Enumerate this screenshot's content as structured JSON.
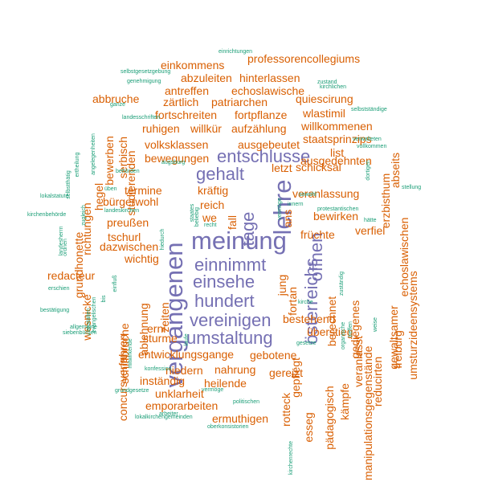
{
  "chart_data": {
    "type": "wordcloud",
    "title": "",
    "colors": {
      "big": "#7570b3",
      "medium": "#d95f02",
      "small": "#1b9e77"
    },
    "words": [
      {
        "text": "vergangenen",
        "weight": 5,
        "group": "big",
        "rotate": 90
      },
      {
        "text": "meinung",
        "weight": 5,
        "group": "big",
        "rotate": 0
      },
      {
        "text": "lehre",
        "weight": 5,
        "group": "big",
        "rotate": 90
      },
      {
        "text": "entschlusse",
        "weight": 4,
        "group": "big",
        "rotate": 0
      },
      {
        "text": "gehalt",
        "weight": 4,
        "group": "big",
        "rotate": 0
      },
      {
        "text": "tage",
        "weight": 4,
        "group": "big",
        "rotate": 90
      },
      {
        "text": "einnimmt",
        "weight": 4,
        "group": "big",
        "rotate": 0
      },
      {
        "text": "einsehe",
        "weight": 4,
        "group": "big",
        "rotate": 0
      },
      {
        "text": "hundert",
        "weight": 4,
        "group": "big",
        "rotate": 0
      },
      {
        "text": "vereinigen",
        "weight": 4,
        "group": "big",
        "rotate": 0
      },
      {
        "text": "umstaltung",
        "weight": 4,
        "group": "big",
        "rotate": 0
      },
      {
        "text": "österreichs",
        "weight": 4,
        "group": "big",
        "rotate": 90
      },
      {
        "text": "öffnen",
        "weight": 4,
        "group": "big",
        "rotate": 90
      },
      {
        "text": "professorencollegiums",
        "weight": 3,
        "group": "medium",
        "rotate": 0
      },
      {
        "text": "einkommens",
        "weight": 3,
        "group": "medium",
        "rotate": 0
      },
      {
        "text": "abzuleiten",
        "weight": 3,
        "group": "medium",
        "rotate": 0
      },
      {
        "text": "hinterlassen",
        "weight": 3,
        "group": "medium",
        "rotate": 0
      },
      {
        "text": "antreffen",
        "weight": 3,
        "group": "medium",
        "rotate": 0
      },
      {
        "text": "echoslawische",
        "weight": 3,
        "group": "medium",
        "rotate": 0
      },
      {
        "text": "abbruche",
        "weight": 3,
        "group": "medium",
        "rotate": 0
      },
      {
        "text": "zärtlich",
        "weight": 3,
        "group": "medium",
        "rotate": 0
      },
      {
        "text": "patriarchen",
        "weight": 3,
        "group": "medium",
        "rotate": 0
      },
      {
        "text": "quiescirung",
        "weight": 3,
        "group": "medium",
        "rotate": 0
      },
      {
        "text": "fortschreiten",
        "weight": 3,
        "group": "medium",
        "rotate": 0
      },
      {
        "text": "fortpflanze",
        "weight": 3,
        "group": "medium",
        "rotate": 0
      },
      {
        "text": "wlastimil",
        "weight": 3,
        "group": "medium",
        "rotate": 0
      },
      {
        "text": "ruhigen",
        "weight": 3,
        "group": "medium",
        "rotate": 0
      },
      {
        "text": "willkür",
        "weight": 3,
        "group": "medium",
        "rotate": 0
      },
      {
        "text": "aufzählung",
        "weight": 3,
        "group": "medium",
        "rotate": 0
      },
      {
        "text": "willkommenen",
        "weight": 3,
        "group": "medium",
        "rotate": 0
      },
      {
        "text": "staatsprinzips",
        "weight": 3,
        "group": "medium",
        "rotate": 0
      },
      {
        "text": "volksklassen",
        "weight": 3,
        "group": "medium",
        "rotate": 0
      },
      {
        "text": "ausgebeutet",
        "weight": 3,
        "group": "medium",
        "rotate": 0
      },
      {
        "text": "bewegungen",
        "weight": 3,
        "group": "medium",
        "rotate": 0
      },
      {
        "text": "list",
        "weight": 3,
        "group": "medium",
        "rotate": 0
      },
      {
        "text": "ausgedehnten",
        "weight": 3,
        "group": "medium",
        "rotate": 0
      },
      {
        "text": "letzt",
        "weight": 3,
        "group": "medium",
        "rotate": 0
      },
      {
        "text": "schicksal",
        "weight": 3,
        "group": "medium",
        "rotate": 0
      },
      {
        "text": "kräftig",
        "weight": 3,
        "group": "medium",
        "rotate": 0
      },
      {
        "text": "termine",
        "weight": 3,
        "group": "medium",
        "rotate": 0
      },
      {
        "text": "bürgerwohl",
        "weight": 3,
        "group": "medium",
        "rotate": 0
      },
      {
        "text": "reich",
        "weight": 3,
        "group": "medium",
        "rotate": 0
      },
      {
        "text": "veranlassung",
        "weight": 3,
        "group": "medium",
        "rotate": 0
      },
      {
        "text": "we",
        "weight": 3,
        "group": "medium",
        "rotate": 0
      },
      {
        "text": "preußen",
        "weight": 3,
        "group": "medium",
        "rotate": 0
      },
      {
        "text": "bewirken",
        "weight": 3,
        "group": "medium",
        "rotate": 0
      },
      {
        "text": "tschurl",
        "weight": 3,
        "group": "medium",
        "rotate": 0
      },
      {
        "text": "früchte",
        "weight": 3,
        "group": "medium",
        "rotate": 0
      },
      {
        "text": "verfiel",
        "weight": 3,
        "group": "medium",
        "rotate": 0
      },
      {
        "text": "dazwischen",
        "weight": 3,
        "group": "medium",
        "rotate": 0
      },
      {
        "text": "wichtig",
        "weight": 3,
        "group": "medium",
        "rotate": 0
      },
      {
        "text": "redacteur",
        "weight": 3,
        "group": "medium",
        "rotate": 0
      },
      {
        "text": "bestehend",
        "weight": 3,
        "group": "medium",
        "rotate": 0
      },
      {
        "text": "erni",
        "weight": 3,
        "group": "medium",
        "rotate": 0
      },
      {
        "text": "überstieg",
        "weight": 3,
        "group": "medium",
        "rotate": 0
      },
      {
        "text": "sturme",
        "weight": 3,
        "group": "medium",
        "rotate": 0
      },
      {
        "text": "entwicklungsgange",
        "weight": 3,
        "group": "medium",
        "rotate": 0
      },
      {
        "text": "gebotene",
        "weight": 3,
        "group": "medium",
        "rotate": 0
      },
      {
        "text": "niedern",
        "weight": 3,
        "group": "medium",
        "rotate": 0
      },
      {
        "text": "nahrung",
        "weight": 3,
        "group": "medium",
        "rotate": 0
      },
      {
        "text": "gereizt",
        "weight": 3,
        "group": "medium",
        "rotate": 0
      },
      {
        "text": "inständig",
        "weight": 3,
        "group": "medium",
        "rotate": 0
      },
      {
        "text": "heilende",
        "weight": 3,
        "group": "medium",
        "rotate": 0
      },
      {
        "text": "unklarheit",
        "weight": 3,
        "group": "medium",
        "rotate": 0
      },
      {
        "text": "emporarbeiten",
        "weight": 3,
        "group": "medium",
        "rotate": 0
      },
      {
        "text": "ermuthigen",
        "weight": 3,
        "group": "medium",
        "rotate": 0
      },
      {
        "text": "studierenden",
        "weight": 3,
        "group": "medium",
        "rotate": 90
      },
      {
        "text": "serbisch",
        "weight": 3,
        "group": "medium",
        "rotate": 90
      },
      {
        "text": "bewerben",
        "weight": 3,
        "group": "medium",
        "rotate": 90
      },
      {
        "text": "hegel",
        "weight": 3,
        "group": "medium",
        "rotate": 90
      },
      {
        "text": "richtungen",
        "weight": 3,
        "group": "medium",
        "rotate": 90
      },
      {
        "text": "grundhonette",
        "weight": 3,
        "group": "medium",
        "rotate": 90
      },
      {
        "text": "wesnické",
        "weight": 3,
        "group": "medium",
        "rotate": 90
      },
      {
        "text": "concursverfahren",
        "weight": 3,
        "group": "medium",
        "rotate": 90
      },
      {
        "text": "schiffbruche",
        "weight": 3,
        "group": "medium",
        "rotate": 90
      },
      {
        "text": "ablehnung",
        "weight": 3,
        "group": "medium",
        "rotate": 90
      },
      {
        "text": "zeiten",
        "weight": 3,
        "group": "medium",
        "rotate": 90
      },
      {
        "text": "fall",
        "weight": 3,
        "group": "medium",
        "rotate": 90
      },
      {
        "text": "ans",
        "weight": 3,
        "group": "medium",
        "rotate": 90
      },
      {
        "text": "fortan",
        "weight": 3,
        "group": "medium",
        "rotate": 90
      },
      {
        "text": "jung",
        "weight": 3,
        "group": "medium",
        "rotate": 90
      },
      {
        "text": "berechnet",
        "weight": 3,
        "group": "medium",
        "rotate": 90
      },
      {
        "text": "gediegenes",
        "weight": 3,
        "group": "medium",
        "rotate": 90
      },
      {
        "text": "erzbisthum",
        "weight": 3,
        "group": "medium",
        "rotate": 90
      },
      {
        "text": "abseits",
        "weight": 3,
        "group": "medium",
        "rotate": 90
      },
      {
        "text": "echoslawischen",
        "weight": 3,
        "group": "medium",
        "rotate": 90
      },
      {
        "text": "umsturzideensystems",
        "weight": 3,
        "group": "medium",
        "rotate": 90
      },
      {
        "text": "gewaltsamer",
        "weight": 3,
        "group": "medium",
        "rotate": 90
      },
      {
        "text": "veranlasst",
        "weight": 3,
        "group": "medium",
        "rotate": 90
      },
      {
        "text": "freiburg",
        "weight": 3,
        "group": "medium",
        "rotate": 90
      },
      {
        "text": "reducirten",
        "weight": 3,
        "group": "medium",
        "rotate": 90
      },
      {
        "text": "manipulationsgegenstände",
        "weight": 3,
        "group": "medium",
        "rotate": 90
      },
      {
        "text": "kämpfe",
        "weight": 3,
        "group": "medium",
        "rotate": 90
      },
      {
        "text": "pädagogisch",
        "weight": 3,
        "group": "medium",
        "rotate": 90
      },
      {
        "text": "esseg",
        "weight": 3,
        "group": "medium",
        "rotate": 90
      },
      {
        "text": "rotteck",
        "weight": 3,
        "group": "medium",
        "rotate": 90
      },
      {
        "text": "gepflegt",
        "weight": 3,
        "group": "medium",
        "rotate": 90
      },
      {
        "text": "einrichtungen",
        "weight": 1,
        "group": "small",
        "rotate": 0
      },
      {
        "text": "selbstgesetzgebung",
        "weight": 1,
        "group": "small",
        "rotate": 0
      },
      {
        "text": "genehmigung",
        "weight": 1,
        "group": "small",
        "rotate": 0
      },
      {
        "text": "zustand",
        "weight": 1,
        "group": "small",
        "rotate": 0
      },
      {
        "text": "kirchlichen",
        "weight": 1,
        "group": "small",
        "rotate": 0
      },
      {
        "text": "ganze",
        "weight": 1,
        "group": "small",
        "rotate": 0
      },
      {
        "text": "landesschriften",
        "weight": 1,
        "group": "small",
        "rotate": 0
      },
      {
        "text": "selbstständige",
        "weight": 1,
        "group": "small",
        "rotate": 0
      },
      {
        "text": "verwalteten",
        "weight": 1,
        "group": "small",
        "rotate": 0
      },
      {
        "text": "vollkommen",
        "weight": 1,
        "group": "small",
        "rotate": 0
      },
      {
        "text": "behörden",
        "weight": 1,
        "group": "small",
        "rotate": 0
      },
      {
        "text": "augsburg",
        "weight": 1,
        "group": "small",
        "rotate": 0
      },
      {
        "text": "sowohl",
        "weight": 1,
        "group": "small",
        "rotate": 0
      },
      {
        "text": "üben",
        "weight": 1,
        "group": "small",
        "rotate": 0
      },
      {
        "text": "lokalstatute",
        "weight": 1,
        "group": "small",
        "rotate": 0
      },
      {
        "text": "stellung",
        "weight": 1,
        "group": "small",
        "rotate": 0
      },
      {
        "text": "landeskirchen",
        "weight": 1,
        "group": "small",
        "rotate": 0
      },
      {
        "text": "protestantischen",
        "weight": 1,
        "group": "small",
        "rotate": 0
      },
      {
        "text": "kirchenbehörde",
        "weight": 1,
        "group": "small",
        "rotate": 0
      },
      {
        "text": "innern",
        "weight": 1,
        "group": "small",
        "rotate": 0
      },
      {
        "text": "hätte",
        "weight": 1,
        "group": "small",
        "rotate": 0
      },
      {
        "text": "recht",
        "weight": 1,
        "group": "small",
        "rotate": 0
      },
      {
        "text": "erschien",
        "weight": 1,
        "group": "small",
        "rotate": 0
      },
      {
        "text": "kirche",
        "weight": 1,
        "group": "small",
        "rotate": 0
      },
      {
        "text": "bestätigung",
        "weight": 1,
        "group": "small",
        "rotate": 0
      },
      {
        "text": "allgemeine",
        "weight": 1,
        "group": "small",
        "rotate": 0
      },
      {
        "text": "siebenbürgen",
        "weight": 1,
        "group": "small",
        "rotate": 0
      },
      {
        "text": "gesetze",
        "weight": 1,
        "group": "small",
        "rotate": 0
      },
      {
        "text": "arbeiter",
        "weight": 1,
        "group": "small",
        "rotate": 0
      },
      {
        "text": "konfession",
        "weight": 1,
        "group": "small",
        "rotate": 0
      },
      {
        "text": "grundgesetze",
        "weight": 1,
        "group": "small",
        "rotate": 0
      },
      {
        "text": "vermöge",
        "weight": 1,
        "group": "small",
        "rotate": 0
      },
      {
        "text": "politischen",
        "weight": 1,
        "group": "small",
        "rotate": 0
      },
      {
        "text": "lokalkirchengemeinden",
        "weight": 1,
        "group": "small",
        "rotate": 0
      },
      {
        "text": "oberkonsistorien",
        "weight": 1,
        "group": "small",
        "rotate": 0
      },
      {
        "text": "angelegenheiten",
        "weight": 1,
        "group": "small",
        "rotate": 90
      },
      {
        "text": "ertheilung",
        "weight": 1,
        "group": "small",
        "rotate": 90
      },
      {
        "text": "selbstthätig",
        "weight": 1,
        "group": "small",
        "rotate": 90
      },
      {
        "text": "zugleich",
        "weight": 1,
        "group": "small",
        "rotate": 90
      },
      {
        "text": "ordnen",
        "weight": 1,
        "group": "small",
        "rotate": 90
      },
      {
        "text": "dortigen",
        "weight": 1,
        "group": "small",
        "rotate": 90
      },
      {
        "text": "landesherrn",
        "weight": 1,
        "group": "small",
        "rotate": 90
      },
      {
        "text": "beliebig",
        "weight": 1,
        "group": "small",
        "rotate": 90
      },
      {
        "text": "staates",
        "weight": 1,
        "group": "small",
        "rotate": 90
      },
      {
        "text": "hiedurch",
        "weight": 1,
        "group": "small",
        "rotate": 90
      },
      {
        "text": "bis",
        "weight": 1,
        "group": "small",
        "rotate": 90
      },
      {
        "text": "einfluß",
        "weight": 1,
        "group": "small",
        "rotate": 90
      },
      {
        "text": "evangelischen",
        "weight": 1,
        "group": "small",
        "rotate": 90
      },
      {
        "text": "anstalten",
        "weight": 1,
        "group": "small",
        "rotate": 90
      },
      {
        "text": "laufe",
        "weight": 1,
        "group": "small",
        "rotate": 90
      },
      {
        "text": "organische",
        "weight": 1,
        "group": "small",
        "rotate": 90
      },
      {
        "text": "treffen",
        "weight": 1,
        "group": "small",
        "rotate": 90
      },
      {
        "text": "weise",
        "weight": 1,
        "group": "small",
        "rotate": 90
      },
      {
        "text": "zuständig",
        "weight": 1,
        "group": "small",
        "rotate": 90
      },
      {
        "text": "kirchenrechte",
        "weight": 1,
        "group": "small",
        "rotate": 90
      },
      {
        "text": "mitwirkende",
        "weight": 1,
        "group": "small",
        "rotate": 90
      },
      {
        "text": "vermöge",
        "weight": 1,
        "group": "small",
        "rotate": 90
      }
    ]
  }
}
